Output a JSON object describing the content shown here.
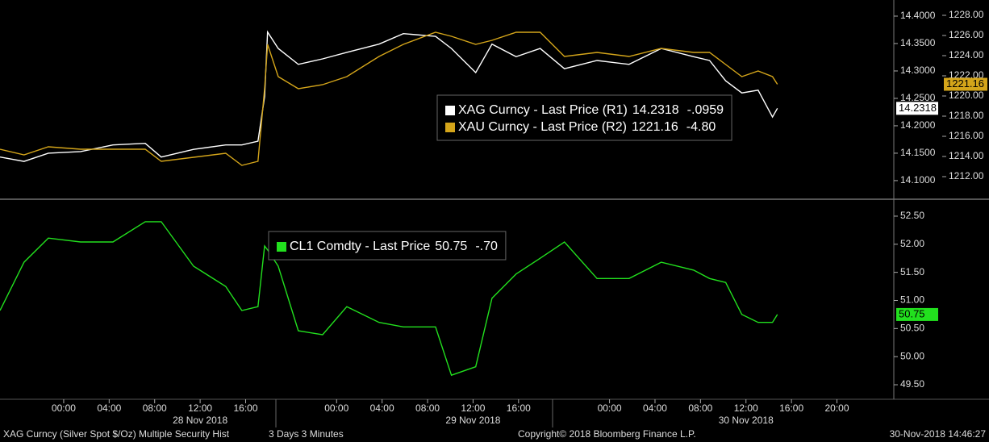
{
  "chart_data": [
    {
      "type": "line",
      "xlim": [
        "2018-11-27T18:24",
        "2018-12-01T01:00"
      ],
      "x": [
        "2018-11-27T18:24",
        "2018-11-27T20:31",
        "2018-11-27T22:39",
        "2018-11-28T01:29",
        "2018-11-28T04:20",
        "2018-11-28T07:10",
        "2018-11-28T08:35",
        "2018-11-28T11:25",
        "2018-11-28T14:15",
        "2018-11-28T15:40",
        "2018-11-28T17:05",
        "2018-11-28T17:40",
        "2018-11-28T17:56",
        "2018-11-28T18:52",
        "2018-11-28T20:38",
        "2018-11-28T22:46",
        "2018-11-29T00:54",
        "2018-11-29T03:44",
        "2018-11-29T05:52",
        "2018-11-29T08:42",
        "2018-11-29T10:06",
        "2018-11-29T12:14",
        "2018-11-29T13:40",
        "2018-11-29T15:47",
        "2018-11-29T17:54",
        "2018-11-29T20:02",
        "2018-11-29T22:54",
        "2018-11-30T01:43",
        "2018-11-30T04:33",
        "2018-11-30T07:24",
        "2018-11-30T08:48",
        "2018-11-30T10:13",
        "2018-11-30T11:38",
        "2018-11-30T13:04",
        "2018-11-30T14:20",
        "2018-11-30T14:46"
      ],
      "ylim": [
        14.069,
        14.4294
      ],
      "yticks": [
        {
          "value": 14.1,
          "label": "14.1000"
        },
        {
          "value": 14.15,
          "label": "14.1500"
        },
        {
          "value": 14.2,
          "label": "14.2000"
        },
        {
          "value": 14.25,
          "label": "14.2500"
        },
        {
          "value": 14.3,
          "label": "14.3000"
        },
        {
          "value": 14.35,
          "label": "14.3500"
        },
        {
          "value": 14.4,
          "label": "14.4000"
        }
      ],
      "y2lim": [
        1209.92,
        1229.52
      ],
      "y2ticks": [
        {
          "value": 1212,
          "label": "1212.00"
        },
        {
          "value": 1214,
          "label": "1214.00"
        },
        {
          "value": 1216,
          "label": "1216.00"
        },
        {
          "value": 1218,
          "label": "1218.00"
        },
        {
          "value": 1220,
          "label": "1220.00"
        },
        {
          "value": 1222,
          "label": "1222.00"
        },
        {
          "value": 1224,
          "label": "1224.00"
        },
        {
          "value": 1226,
          "label": "1226.00"
        },
        {
          "value": 1228,
          "label": "1228.00"
        }
      ],
      "series": [
        {
          "name": "XAG Curncy - Last Price (R1)",
          "color": "#ffffff",
          "change": "-.0959",
          "values": [
            14.143,
            14.135,
            14.15,
            14.153,
            14.165,
            14.168,
            14.143,
            14.157,
            14.165,
            14.165,
            14.172,
            14.253,
            14.371,
            14.341,
            14.312,
            14.322,
            14.334,
            14.349,
            14.368,
            14.363,
            14.341,
            14.297,
            14.349,
            14.326,
            14.341,
            14.304,
            14.319,
            14.312,
            14.341,
            14.326,
            14.319,
            14.282,
            14.26,
            14.265,
            14.216,
            14.2318
          ]
        },
        {
          "name": "XAU Curncy - Last Price (R2)",
          "color": "#d4a51a",
          "change": "-4.80",
          "axis": "y2",
          "values": [
            1214.72,
            1214.16,
            1214.96,
            1214.72,
            1214.72,
            1214.72,
            1213.52,
            1213.92,
            1214.32,
            1213.12,
            1213.52,
            1220.72,
            1225.12,
            1221.92,
            1220.72,
            1221.12,
            1221.92,
            1223.92,
            1225.12,
            1226.32,
            1225.92,
            1225.12,
            1225.52,
            1226.32,
            1226.32,
            1223.92,
            1224.32,
            1223.92,
            1224.72,
            1224.32,
            1224.32,
            1223.12,
            1221.92,
            1222.48,
            1221.92,
            1221.16
          ]
        }
      ]
    },
    {
      "type": "line",
      "xlim": [
        "2018-11-27T18:24",
        "2018-12-01T01:00"
      ],
      "x": [
        "2018-11-27T18:24",
        "2018-11-27T20:31",
        "2018-11-27T22:39",
        "2018-11-28T01:29",
        "2018-11-28T04:20",
        "2018-11-28T07:10",
        "2018-11-28T08:35",
        "2018-11-28T11:25",
        "2018-11-28T14:15",
        "2018-11-28T15:40",
        "2018-11-28T17:05",
        "2018-11-28T17:40",
        "2018-11-28T17:56",
        "2018-11-28T18:52",
        "2018-11-28T20:38",
        "2018-11-28T22:46",
        "2018-11-29T00:54",
        "2018-11-29T03:44",
        "2018-11-29T05:52",
        "2018-11-29T08:42",
        "2018-11-29T10:06",
        "2018-11-29T12:14",
        "2018-11-29T13:40",
        "2018-11-29T15:47",
        "2018-11-29T17:54",
        "2018-11-29T20:02",
        "2018-11-29T22:54",
        "2018-11-30T01:43",
        "2018-11-30T04:33",
        "2018-11-30T07:24",
        "2018-11-30T08:48",
        "2018-11-30T10:13",
        "2018-11-30T11:38",
        "2018-11-30T13:04",
        "2018-11-30T14:20",
        "2018-11-30T14:46"
      ],
      "ylim": [
        49.242,
        52.758
      ],
      "yticks": [
        {
          "value": 49.5,
          "label": "49.50"
        },
        {
          "value": 50,
          "label": "50.00"
        },
        {
          "value": 50.5,
          "label": "50.50"
        },
        {
          "value": 51,
          "label": "51.00"
        },
        {
          "value": 51.5,
          "label": "51.50"
        },
        {
          "value": 52,
          "label": "52.00"
        },
        {
          "value": 52.5,
          "label": "52.50"
        }
      ],
      "xticks": [
        {
          "value": "2018-11-28T00:00",
          "label": "00:00"
        },
        {
          "value": "2018-11-28T04:00",
          "label": "04:00"
        },
        {
          "value": "2018-11-28T08:00",
          "label": "08:00"
        },
        {
          "value": "2018-11-28T12:00",
          "label": "12:00"
        },
        {
          "value": "2018-11-28T16:00",
          "label": "16:00"
        },
        {
          "value": "2018-11-29T00:00",
          "label": "00:00"
        },
        {
          "value": "2018-11-29T04:00",
          "label": "04:00"
        },
        {
          "value": "2018-11-29T08:00",
          "label": "08:00"
        },
        {
          "value": "2018-11-29T12:00",
          "label": "12:00"
        },
        {
          "value": "2018-11-29T16:00",
          "label": "16:00"
        },
        {
          "value": "2018-11-30T00:00",
          "label": "00:00"
        },
        {
          "value": "2018-11-30T04:00",
          "label": "04:00"
        },
        {
          "value": "2018-11-30T08:00",
          "label": "08:00"
        },
        {
          "value": "2018-11-30T12:00",
          "label": "12:00"
        },
        {
          "value": "2018-11-30T16:00",
          "label": "16:00"
        },
        {
          "value": "2018-11-30T20:00",
          "label": "20:00"
        }
      ],
      "date_labels": [
        {
          "value": "2018-11-28T12:00",
          "label": "28 Nov 2018"
        },
        {
          "value": "2018-11-29T12:00",
          "label": "29 Nov 2018"
        },
        {
          "value": "2018-11-30T12:00",
          "label": "30 Nov 2018"
        }
      ],
      "series": [
        {
          "name": "CL1 Comdty - Last Price",
          "color": "#22e01e",
          "change": "-.70",
          "values": [
            50.82,
            51.68,
            52.11,
            52.04,
            52.04,
            52.4,
            52.4,
            51.61,
            51.25,
            50.82,
            50.89,
            51.97,
            51.9,
            51.61,
            50.46,
            50.39,
            50.89,
            50.61,
            50.53,
            50.53,
            49.67,
            49.82,
            51.04,
            51.47,
            51.75,
            52.04,
            51.39,
            51.39,
            51.68,
            51.54,
            51.39,
            51.32,
            50.75,
            50.61,
            50.61,
            50.75
          ]
        }
      ]
    }
  ],
  "footer": {
    "security": "XAG Curncy (Silver Spot  $/Oz) Multiple Security Hist",
    "period": "3 Days 3 Minutes",
    "copyright": "Copyright© 2018 Bloomberg Finance L.P.",
    "timestamp": "30-Nov-2018 14:46:27"
  }
}
